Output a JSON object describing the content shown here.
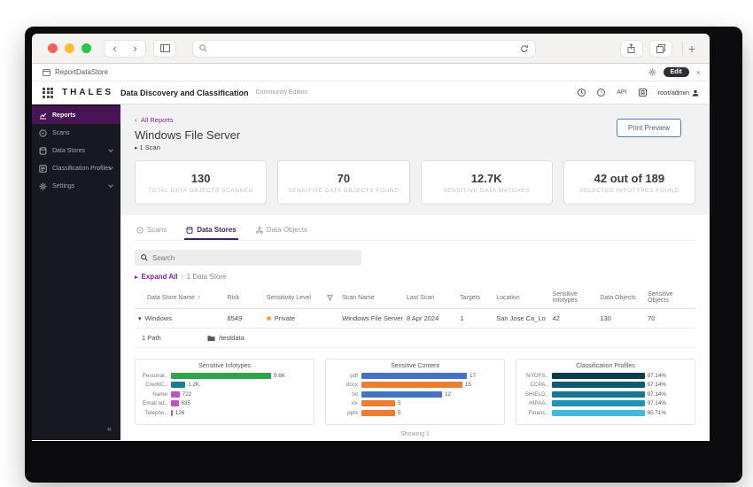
{
  "colors": {
    "sidebar_bg": "#181821",
    "sidebar_active_bg": "#471456",
    "accent_purple": "#86259b",
    "tab_active": "#3f2456",
    "sensitivity_private_dot": "#f0a93b",
    "print_button_border": "#4d7fae",
    "traffic_red": "#ff5f57",
    "traffic_yellow": "#febc2e",
    "traffic_green": "#28c840"
  },
  "browser": {
    "tab_title": "ReportDataStore",
    "edit_label": "Edit",
    "close_label": "×",
    "back_glyph": "‹",
    "forward_glyph": "›",
    "new_tab_glyph": "+"
  },
  "app_header": {
    "brand": "THALES",
    "product": "Data Discovery and Classification",
    "edition": "Community Edition",
    "api_label": "API",
    "user": "root/admin"
  },
  "sidebar": {
    "items": [
      {
        "label": "Reports",
        "active": true,
        "chevron": false
      },
      {
        "label": "Scans",
        "active": false,
        "chevron": false
      },
      {
        "label": "Data Stores",
        "active": false,
        "chevron": true
      },
      {
        "label": "Classification Profiles",
        "active": false,
        "chevron": true
      },
      {
        "label": "Settings",
        "active": false,
        "chevron": true
      }
    ],
    "collapse_glyph": "«"
  },
  "page": {
    "back_glyph": "‹",
    "back_label": "All Reports",
    "title": "Windows File Server",
    "scan_caret": "▸",
    "scan_toggle": "1 Scan",
    "print_button": "Print Preview"
  },
  "stats": [
    {
      "value": "130",
      "label": "Total Data Objects Scanned"
    },
    {
      "value": "70",
      "label": "Sensitive Data Objects Found"
    },
    {
      "value": "12.7K",
      "label": "Sensitive Data Matches"
    },
    {
      "value": "42 out of 189",
      "label": "Selected Infotypes Found"
    }
  ],
  "tabs": [
    {
      "label": "Scans",
      "active": false
    },
    {
      "label": "Data Stores",
      "active": true
    },
    {
      "label": "Data Objects",
      "active": false
    }
  ],
  "search": {
    "placeholder": "Search"
  },
  "list_controls": {
    "expand_caret": "▸",
    "expand_all": "Expand All",
    "separator": "|",
    "count": "1 Data Store"
  },
  "table": {
    "columns": [
      "Data Store Name",
      "Risk",
      "Sensitivity Level",
      "Scan Name",
      "Last Scan",
      "Targets",
      "Location",
      "Sensitive Infotypes",
      "Data Objects",
      "Sensitive Objects"
    ],
    "sort_glyph": "↑",
    "row_caret": "▾",
    "row": {
      "name": "Windows",
      "risk": "8549",
      "sensitivity": "Private",
      "scan_name": "Windows File Server",
      "last_scan": "8 Apr 2024",
      "targets": "1",
      "location": "San Jose Ca_Lo",
      "sensitive_infotypes": "42",
      "data_objects": "130",
      "sensitive_objects": "70"
    },
    "path_count": "1 Path",
    "path": "/testdata"
  },
  "chart_data": [
    {
      "type": "bar",
      "orientation": "horizontal",
      "title": "Sensitive Infotypes",
      "categories": [
        "Personal..",
        "CreditC..",
        "Name",
        "Email ad..",
        "Telepho.."
      ],
      "values": [
        9600,
        1200,
        722,
        635,
        126
      ],
      "value_labels": [
        "9.6K",
        "1.2K",
        "722",
        "635",
        "126"
      ],
      "colors": [
        "#2da44e",
        "#17818e",
        "#c254c2",
        "#c254c2",
        "#c254c2"
      ],
      "xlim": [
        0,
        9600
      ],
      "grid": false,
      "legend": "none"
    },
    {
      "type": "bar",
      "orientation": "horizontal",
      "title": "Sensitive Content",
      "categories": [
        "pdf",
        "docx",
        "txt",
        "xls",
        "pptx"
      ],
      "values": [
        17,
        15,
        12,
        5,
        5
      ],
      "value_labels": [
        "17",
        "15",
        "12",
        "5",
        "5"
      ],
      "colors": [
        "#4472c4",
        "#ed7d31",
        "#4472c4",
        "#ed7d31",
        "#ed7d31"
      ],
      "xlim": [
        0,
        17
      ],
      "grid": false,
      "legend": "none"
    },
    {
      "type": "bar",
      "orientation": "horizontal",
      "title": "Classification Profiles",
      "categories": [
        "NYDFS..",
        "CCPA..",
        "SHIELD..",
        "HIPAA..",
        "Financ.."
      ],
      "values": [
        97.14,
        97.14,
        97.14,
        97.14,
        85.71
      ],
      "value_labels": [
        "97.14%",
        "97.14%",
        "97.14%",
        "97.14%",
        "85.71%"
      ],
      "colors": [
        "#0c3c4c",
        "#125a71",
        "#187795",
        "#1f93b7",
        "#45b8d9"
      ],
      "xlim": [
        0,
        100
      ],
      "grid": false,
      "legend": "none"
    }
  ],
  "footer": {
    "showing": "Showing 1"
  }
}
